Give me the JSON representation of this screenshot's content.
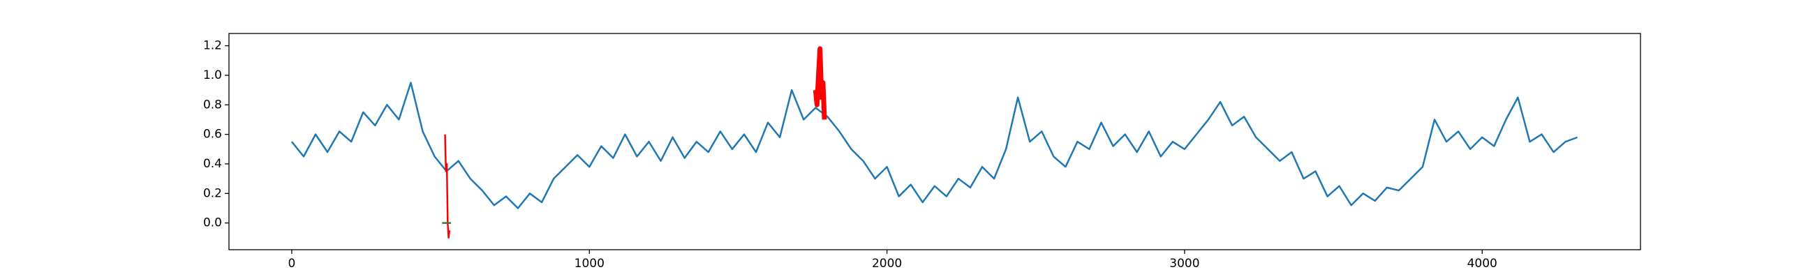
{
  "chart_data": {
    "type": "line",
    "xlim": [
      -211,
      4532
    ],
    "ylim": [
      -0.181,
      1.283
    ],
    "xticks": [
      0,
      1000,
      2000,
      3000,
      4000
    ],
    "yticks": [
      {
        "value": 0,
        "label": "0.0"
      },
      0.2,
      0.4,
      0.6,
      0.8,
      {
        "value": 1,
        "label": "1.0"
      },
      1.2
    ],
    "series": [
      {
        "color": "#1f77b4",
        "x": [
          0,
          40,
          80,
          120,
          160,
          200,
          240,
          280,
          320,
          360,
          400,
          440,
          480,
          520,
          560,
          600,
          640,
          680,
          720,
          760,
          800,
          840,
          880,
          920,
          960,
          1000,
          1040,
          1080,
          1120,
          1160,
          1200,
          1240,
          1280,
          1320,
          1360,
          1400,
          1440,
          1480,
          1520,
          1560,
          1600,
          1640,
          1680,
          1720,
          1760,
          1800,
          1840,
          1880,
          1920,
          1960,
          2000,
          2040,
          2080,
          2120,
          2160,
          2200,
          2240,
          2280,
          2320,
          2360,
          2400,
          2440,
          2480,
          2520,
          2560,
          2600,
          2640,
          2680,
          2720,
          2760,
          2800,
          2840,
          2880,
          2920,
          2960,
          3000,
          3040,
          3080,
          3120,
          3160,
          3200,
          3240,
          3280,
          3320,
          3360,
          3400,
          3440,
          3480,
          3520,
          3560,
          3600,
          3640,
          3680,
          3720,
          3760,
          3800,
          3840,
          3880,
          3920,
          3960,
          4000,
          4040,
          4080,
          4120,
          4160,
          4200,
          4240,
          4280,
          4320
        ],
        "values": [
          0.55,
          0.45,
          0.6,
          0.48,
          0.62,
          0.55,
          0.75,
          0.66,
          0.8,
          0.7,
          0.95,
          0.62,
          0.45,
          0.35,
          0.42,
          0.3,
          0.22,
          0.12,
          0.18,
          0.1,
          0.2,
          0.14,
          0.3,
          0.38,
          0.46,
          0.38,
          0.52,
          0.44,
          0.6,
          0.45,
          0.55,
          0.42,
          0.58,
          0.44,
          0.55,
          0.48,
          0.62,
          0.5,
          0.6,
          0.48,
          0.68,
          0.58,
          0.9,
          0.7,
          0.78,
          0.72,
          0.62,
          0.5,
          0.42,
          0.3,
          0.38,
          0.18,
          0.26,
          0.14,
          0.25,
          0.18,
          0.3,
          0.24,
          0.38,
          0.3,
          0.5,
          0.85,
          0.55,
          0.62,
          0.45,
          0.38,
          0.55,
          0.5,
          0.68,
          0.52,
          0.6,
          0.48,
          0.62,
          0.45,
          0.55,
          0.5,
          0.6,
          0.7,
          0.82,
          0.66,
          0.72,
          0.58,
          0.5,
          0.42,
          0.48,
          0.3,
          0.35,
          0.18,
          0.25,
          0.12,
          0.2,
          0.15,
          0.24,
          0.22,
          0.3,
          0.38,
          0.7,
          0.55,
          0.62,
          0.5,
          0.58,
          0.52,
          0.7,
          0.85,
          0.55,
          0.6,
          0.48,
          0.55,
          0.58
        ]
      },
      {
        "color": "#ff0000",
        "x": [
          515,
          518,
          521,
          524,
          527,
          530
        ],
        "values": [
          0.6,
          0.35,
          0.4,
          0.0,
          -0.1,
          -0.05
        ]
      },
      {
        "color": "#ff0000",
        "x": [
          1760,
          1765,
          1770,
          1775,
          1780,
          1785,
          1790
        ],
        "values": [
          0.9,
          0.8,
          1.0,
          1.18,
          0.85,
          0.95,
          0.7
        ]
      },
      {
        "color": "#2e7d32",
        "x": [
          505,
          535
        ],
        "values": [
          0,
          0
        ]
      }
    ]
  }
}
